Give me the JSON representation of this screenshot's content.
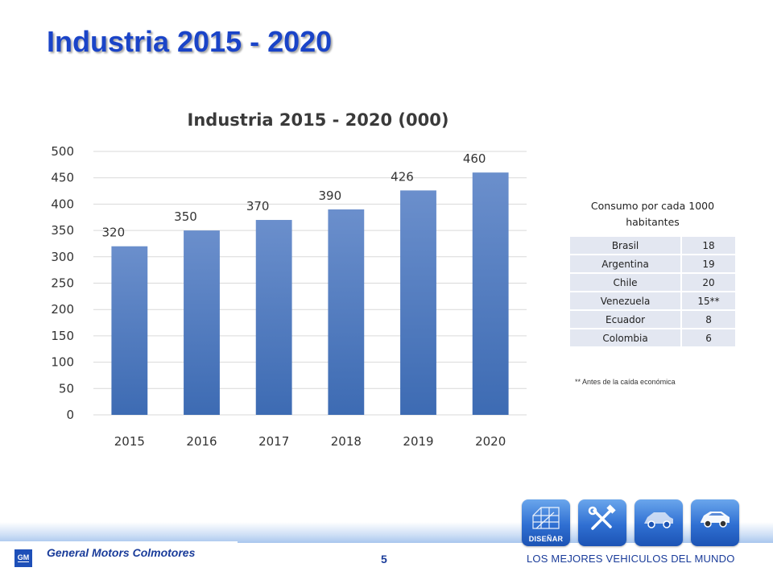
{
  "slide": {
    "title": "Industria 2015 - 2020"
  },
  "chart_data": {
    "type": "bar",
    "title": "Industria 2015 - 2020 (000)",
    "categories": [
      "2015",
      "2016",
      "2017",
      "2018",
      "2019",
      "2020"
    ],
    "values": [
      320,
      350,
      370,
      390,
      426,
      460
    ],
    "data_labels": [
      "320",
      "350",
      "370",
      "390",
      "426",
      "460"
    ],
    "yticks": [
      0,
      50,
      100,
      150,
      200,
      250,
      300,
      350,
      400,
      450,
      500
    ],
    "ylim": [
      0,
      500
    ],
    "xlabel": "",
    "ylabel": "",
    "grid": true,
    "legend": "none",
    "bar_color_top": "#6b8fcc",
    "bar_color_bottom": "#3d6bb3"
  },
  "consumo_table": {
    "header": "Consumo por cada 1000 habitantes",
    "rows": [
      {
        "country": "Brasil",
        "value": "18"
      },
      {
        "country": "Argentina",
        "value": "19"
      },
      {
        "country": "Chile",
        "value": "20"
      },
      {
        "country": "Venezuela",
        "value": "15**"
      },
      {
        "country": "Ecuador",
        "value": "8"
      },
      {
        "country": "Colombia",
        "value": "6"
      }
    ],
    "footnote": "** Antes de la caída económica"
  },
  "footer": {
    "logo_text": "GM",
    "company": "General Motors Colmotores",
    "page_number": "5",
    "tagline": "LOS MEJORES VEHICULOS DEL MUNDO",
    "tiles": [
      {
        "label": "DISEÑAR",
        "icon": "blueprint-icon"
      },
      {
        "label": "",
        "icon": "tools-icon"
      },
      {
        "label": "",
        "icon": "car-frame-icon"
      },
      {
        "label": "",
        "icon": "car-icon"
      }
    ]
  },
  "colors": {
    "title": "#1a44c8",
    "brand_blue": "#1a3c9a",
    "table_cell": "#e3e7f1"
  }
}
